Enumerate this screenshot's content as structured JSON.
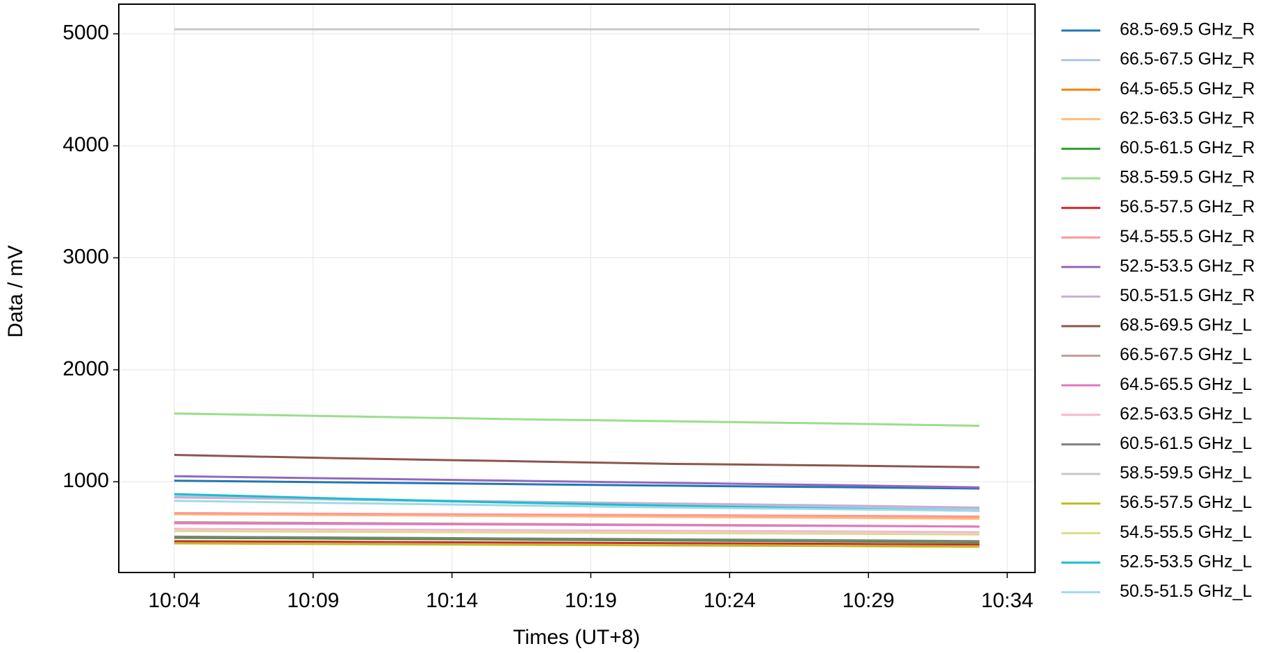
{
  "chart_data": {
    "type": "line",
    "xlabel": "Times (UT+8)",
    "ylabel": "Data / mV",
    "x": [
      "10:04",
      "10:10",
      "10:16",
      "10:22",
      "10:28",
      "10:33"
    ],
    "xlim": [
      "10:02",
      "10:35"
    ],
    "xticks": [
      "10:04",
      "10:09",
      "10:14",
      "10:19",
      "10:24",
      "10:29",
      "10:34"
    ],
    "ylim": [
      190,
      5265
    ],
    "yticks": [
      1000,
      2000,
      3000,
      4000,
      5000
    ],
    "grid": true,
    "legend": "right",
    "series": [
      {
        "name": "68.5-69.5 GHz_R",
        "color": "#1f77b4",
        "values": [
          1010,
          995,
          980,
          965,
          952,
          940
        ]
      },
      {
        "name": "66.5-67.5 GHz_R",
        "color": "#aec7e8",
        "values": [
          870,
          840,
          815,
          790,
          775,
          760
        ]
      },
      {
        "name": "64.5-65.5 GHz_R",
        "color": "#ff7f0e",
        "values": [
          720,
          712,
          704,
          696,
          688,
          680
        ]
      },
      {
        "name": "62.5-63.5 GHz_R",
        "color": "#ffbb78",
        "values": [
          710,
          702,
          694,
          686,
          678,
          670
        ]
      },
      {
        "name": "60.5-61.5 GHz_R",
        "color": "#2ca02c",
        "values": [
          500,
          492,
          484,
          476,
          468,
          460
        ]
      },
      {
        "name": "58.5-59.5 GHz_R",
        "color": "#98df8a",
        "values": [
          1610,
          1585,
          1560,
          1540,
          1520,
          1500
        ]
      },
      {
        "name": "56.5-57.5 GHz_R",
        "color": "#d62728",
        "values": [
          470,
          464,
          458,
          452,
          446,
          440
        ]
      },
      {
        "name": "54.5-55.5 GHz_R",
        "color": "#ff9896",
        "values": [
          720,
          714,
          708,
          702,
          696,
          690
        ]
      },
      {
        "name": "52.5-53.5 GHz_R",
        "color": "#9467bd",
        "values": [
          1050,
          1030,
          1010,
          990,
          970,
          950
        ]
      },
      {
        "name": "50.5-51.5 GHz_R",
        "color": "#c5b0d5",
        "values": [
          860,
          842,
          824,
          806,
          788,
          770
        ]
      },
      {
        "name": "68.5-69.5 GHz_L",
        "color": "#8c564b",
        "values": [
          1240,
          1210,
          1185,
          1160,
          1145,
          1130
        ]
      },
      {
        "name": "66.5-67.5 GHz_L",
        "color": "#c49c94",
        "values": [
          640,
          632,
          624,
          616,
          608,
          600
        ]
      },
      {
        "name": "64.5-65.5 GHz_L",
        "color": "#e377c2",
        "values": [
          630,
          624,
          618,
          612,
          606,
          600
        ]
      },
      {
        "name": "62.5-63.5 GHz_L",
        "color": "#f7b6d2",
        "values": [
          580,
          574,
          568,
          562,
          556,
          550
        ]
      },
      {
        "name": "60.5-61.5 GHz_L",
        "color": "#7f7f7f",
        "values": [
          510,
          502,
          494,
          486,
          478,
          470
        ]
      },
      {
        "name": "58.5-59.5 GHz_L",
        "color": "#c7c7c7",
        "values": [
          5040,
          5040,
          5040,
          5040,
          5040,
          5040
        ]
      },
      {
        "name": "56.5-57.5 GHz_L",
        "color": "#bcbd22",
        "values": [
          450,
          444,
          438,
          432,
          426,
          420
        ]
      },
      {
        "name": "54.5-55.5 GHz_L",
        "color": "#dbdb8d",
        "values": [
          560,
          554,
          548,
          542,
          536,
          530
        ]
      },
      {
        "name": "52.5-53.5 GHz_L",
        "color": "#17becf",
        "values": [
          890,
          850,
          815,
          785,
          760,
          740
        ]
      },
      {
        "name": "50.5-51.5 GHz_L",
        "color": "#9edae5",
        "values": [
          830,
          810,
          790,
          770,
          755,
          740
        ]
      }
    ]
  }
}
